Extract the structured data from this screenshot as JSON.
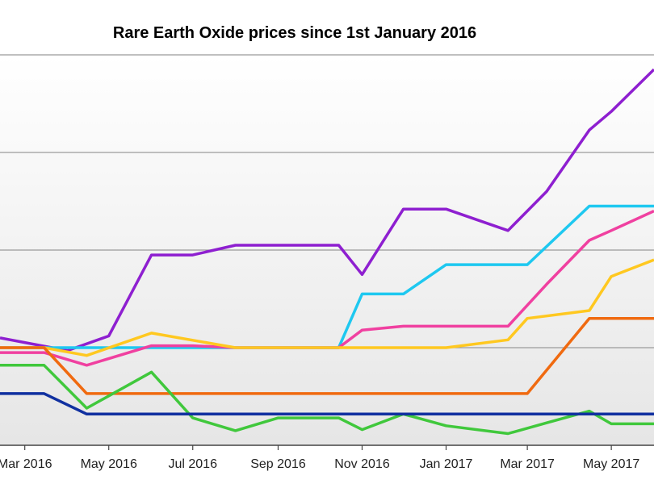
{
  "chart_data": {
    "type": "line",
    "title": "Rare Earth Oxide prices since 1st January 2016",
    "xlabel": "",
    "ylabel": "",
    "x_ticks": [
      {
        "label": "Mar 2016",
        "x": "2016-03-01"
      },
      {
        "label": "May 2016",
        "x": "2016-05-01"
      },
      {
        "label": "Jul 2016",
        "x": "2016-07-01"
      },
      {
        "label": "Sep 2016",
        "x": "2016-09-01"
      },
      {
        "label": "Nov 2016",
        "x": "2016-11-01"
      },
      {
        "label": "Jan 2017",
        "x": "2017-01-01"
      },
      {
        "label": "Mar 2017",
        "x": "2017-03-01"
      },
      {
        "label": "May 2017",
        "x": "2017-05-01"
      }
    ],
    "x_range": [
      "2016-02-12",
      "2017-06-01"
    ],
    "y_range": [
      0,
      4
    ],
    "grid": true,
    "series": [
      {
        "color": "#8e1fd0",
        "points": [
          [
            "2016-02-12",
            1.1
          ],
          [
            "2016-04-01",
            0.97
          ],
          [
            "2016-05-01",
            1.12
          ],
          [
            "2016-06-01",
            1.95
          ],
          [
            "2016-07-01",
            1.95
          ],
          [
            "2016-08-01",
            2.05
          ],
          [
            "2016-10-15",
            2.05
          ],
          [
            "2016-11-01",
            1.75
          ],
          [
            "2016-12-01",
            2.42
          ],
          [
            "2017-01-01",
            2.42
          ],
          [
            "2017-02-15",
            2.2
          ],
          [
            "2017-03-15",
            2.6
          ],
          [
            "2017-04-15",
            3.23
          ],
          [
            "2017-05-01",
            3.42
          ],
          [
            "2017-06-01",
            3.85
          ]
        ]
      },
      {
        "color": "#1ec8f0",
        "points": [
          [
            "2016-02-12",
            1.0
          ],
          [
            "2016-10-15",
            1.0
          ],
          [
            "2016-11-01",
            1.55
          ],
          [
            "2016-12-01",
            1.55
          ],
          [
            "2017-01-01",
            1.85
          ],
          [
            "2017-03-01",
            1.85
          ],
          [
            "2017-04-15",
            2.45
          ],
          [
            "2017-06-01",
            2.45
          ]
        ]
      },
      {
        "color": "#f040a0",
        "points": [
          [
            "2016-02-12",
            0.95
          ],
          [
            "2016-03-15",
            0.95
          ],
          [
            "2016-04-15",
            0.82
          ],
          [
            "2016-06-01",
            1.02
          ],
          [
            "2016-07-01",
            1.02
          ],
          [
            "2016-08-01",
            1.0
          ],
          [
            "2016-10-15",
            1.0
          ],
          [
            "2016-11-01",
            1.18
          ],
          [
            "2016-12-01",
            1.22
          ],
          [
            "2017-01-01",
            1.22
          ],
          [
            "2017-02-15",
            1.22
          ],
          [
            "2017-03-15",
            1.65
          ],
          [
            "2017-04-15",
            2.1
          ],
          [
            "2017-05-01",
            2.2
          ],
          [
            "2017-06-01",
            2.4
          ]
        ]
      },
      {
        "color": "#ffc820",
        "points": [
          [
            "2016-02-12",
            1.0
          ],
          [
            "2016-03-15",
            1.0
          ],
          [
            "2016-04-15",
            0.92
          ],
          [
            "2016-06-01",
            1.15
          ],
          [
            "2016-08-01",
            1.0
          ],
          [
            "2016-10-15",
            1.0
          ],
          [
            "2017-01-01",
            1.0
          ],
          [
            "2017-02-15",
            1.08
          ],
          [
            "2017-03-01",
            1.3
          ],
          [
            "2017-04-15",
            1.38
          ],
          [
            "2017-05-01",
            1.73
          ],
          [
            "2017-06-01",
            1.9
          ]
        ]
      },
      {
        "color": "#f06a10",
        "points": [
          [
            "2016-02-12",
            1.0
          ],
          [
            "2016-03-15",
            1.0
          ],
          [
            "2016-04-15",
            0.53
          ],
          [
            "2017-03-01",
            0.53
          ],
          [
            "2017-04-15",
            1.3
          ],
          [
            "2017-06-01",
            1.3
          ]
        ]
      },
      {
        "color": "#40c83c",
        "points": [
          [
            "2016-02-12",
            0.82
          ],
          [
            "2016-03-15",
            0.82
          ],
          [
            "2016-04-15",
            0.38
          ],
          [
            "2016-06-01",
            0.75
          ],
          [
            "2016-07-01",
            0.28
          ],
          [
            "2016-08-01",
            0.15
          ],
          [
            "2016-09-01",
            0.28
          ],
          [
            "2016-10-15",
            0.28
          ],
          [
            "2016-11-01",
            0.16
          ],
          [
            "2016-12-01",
            0.32
          ],
          [
            "2017-01-01",
            0.2
          ],
          [
            "2017-02-15",
            0.12
          ],
          [
            "2017-03-15",
            0.23
          ],
          [
            "2017-04-15",
            0.35
          ],
          [
            "2017-05-01",
            0.22
          ],
          [
            "2017-06-01",
            0.22
          ]
        ]
      },
      {
        "color": "#1030a0",
        "points": [
          [
            "2016-02-12",
            0.53
          ],
          [
            "2016-03-15",
            0.53
          ],
          [
            "2016-04-15",
            0.32
          ],
          [
            "2017-06-01",
            0.32
          ]
        ]
      }
    ]
  }
}
